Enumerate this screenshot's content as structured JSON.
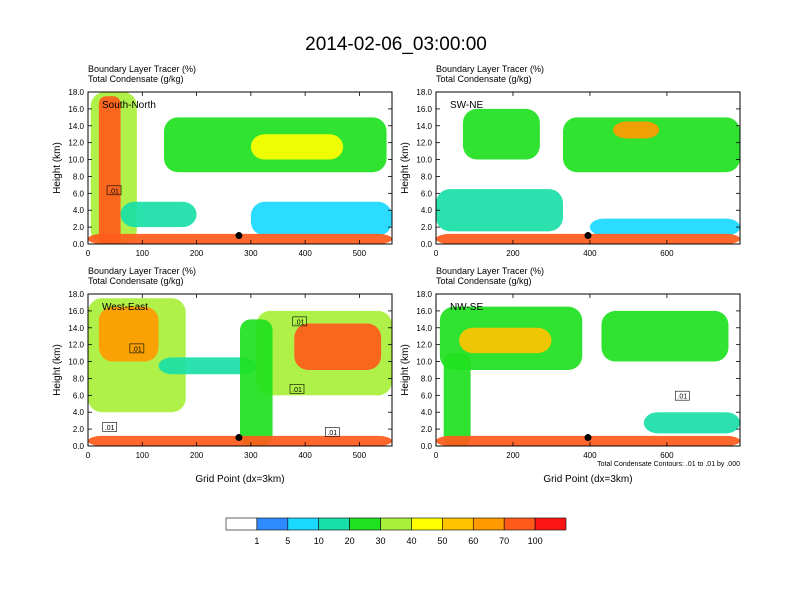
{
  "page_title": "2014-02-06_03:00:00",
  "chart_data": [
    {
      "type": "heatmap",
      "panel": "South-North",
      "title_lines": [
        "Boundary Layer Tracer   (%)",
        "Total Condensate   (g/kg)"
      ],
      "ylabel": "Height (km)",
      "xlabel": "",
      "xlim": [
        0,
        560
      ],
      "ylim": [
        0,
        18
      ],
      "xticks": [
        0,
        100,
        200,
        300,
        400,
        500
      ],
      "yticks": [
        0.0,
        2.0,
        4.0,
        6.0,
        8.0,
        10.0,
        12.0,
        14.0,
        16.0,
        18.0
      ],
      "marker": {
        "x": 278,
        "y": 1.0
      },
      "contour_labels": [
        {
          "text": ".01",
          "x": 48,
          "y": 6.3
        }
      ],
      "regions": [
        {
          "level": 30,
          "x0": 5,
          "x1": 90,
          "y0": 0,
          "y1": 18
        },
        {
          "level": 70,
          "x0": 20,
          "x1": 60,
          "y0": 0,
          "y1": 17.5
        },
        {
          "level": 20,
          "x0": 140,
          "x1": 550,
          "y0": 8.5,
          "y1": 15
        },
        {
          "level": 40,
          "x0": 300,
          "x1": 470,
          "y0": 10,
          "y1": 13
        },
        {
          "level": 10,
          "x0": 60,
          "x1": 200,
          "y0": 2,
          "y1": 5
        },
        {
          "level": 5,
          "x0": 300,
          "x1": 560,
          "y0": 1,
          "y1": 5
        },
        {
          "level": 70,
          "x0": 0,
          "x1": 560,
          "y0": 0,
          "y1": 1.2
        }
      ]
    },
    {
      "type": "heatmap",
      "panel": "SW-NE",
      "title_lines": [
        "Boundary Layer Tracer   (%)",
        "Total Condensate   (g/kg)"
      ],
      "ylabel": "Height (km)",
      "xlabel": "",
      "xlim": [
        0,
        790
      ],
      "ylim": [
        0,
        18
      ],
      "xticks": [
        0,
        200,
        400,
        600
      ],
      "yticks": [
        0.0,
        2.0,
        4.0,
        6.0,
        8.0,
        10.0,
        12.0,
        14.0,
        16.0,
        18.0
      ],
      "marker": {
        "x": 395,
        "y": 1.0
      },
      "contour_labels": [],
      "regions": [
        {
          "level": 20,
          "x0": 70,
          "x1": 270,
          "y0": 10,
          "y1": 16
        },
        {
          "level": 20,
          "x0": 330,
          "x1": 790,
          "y0": 8.5,
          "y1": 15
        },
        {
          "level": 60,
          "x0": 460,
          "x1": 580,
          "y0": 12.5,
          "y1": 14.5
        },
        {
          "level": 10,
          "x0": 0,
          "x1": 330,
          "y0": 1.5,
          "y1": 6.5
        },
        {
          "level": 5,
          "x0": 400,
          "x1": 790,
          "y0": 1,
          "y1": 3
        },
        {
          "level": 70,
          "x0": 0,
          "x1": 790,
          "y0": 0,
          "y1": 1.2
        }
      ]
    },
    {
      "type": "heatmap",
      "panel": "West-East",
      "title_lines": [
        "Boundary Layer Tracer   (%)",
        "Total Condensate   (g/kg)"
      ],
      "ylabel": "Height (km)",
      "xlabel": "Grid Point (dx=3km)",
      "xlim": [
        0,
        560
      ],
      "ylim": [
        0,
        18
      ],
      "xticks": [
        0,
        100,
        200,
        300,
        400,
        500
      ],
      "yticks": [
        0.0,
        2.0,
        4.0,
        6.0,
        8.0,
        10.0,
        12.0,
        14.0,
        16.0,
        18.0
      ],
      "marker": {
        "x": 278,
        "y": 1.0
      },
      "contour_labels": [
        {
          "text": ".01",
          "x": 90,
          "y": 11.5
        },
        {
          "text": ".01",
          "x": 40,
          "y": 2.2
        },
        {
          "text": ".01",
          "x": 390,
          "y": 14.7
        },
        {
          "text": ".01",
          "x": 385,
          "y": 6.7
        },
        {
          "text": ".01",
          "x": 450,
          "y": 1.6
        }
      ],
      "regions": [
        {
          "level": 30,
          "x0": 0,
          "x1": 180,
          "y0": 4,
          "y1": 17.5
        },
        {
          "level": 60,
          "x0": 20,
          "x1": 130,
          "y0": 10,
          "y1": 16.5
        },
        {
          "level": 10,
          "x0": 130,
          "x1": 310,
          "y0": 8.5,
          "y1": 10.5
        },
        {
          "level": 30,
          "x0": 310,
          "x1": 560,
          "y0": 6,
          "y1": 16
        },
        {
          "level": 70,
          "x0": 380,
          "x1": 540,
          "y0": 9,
          "y1": 14.5
        },
        {
          "level": 20,
          "x0": 280,
          "x1": 340,
          "y0": 0,
          "y1": 15
        },
        {
          "level": 70,
          "x0": 0,
          "x1": 560,
          "y0": 0,
          "y1": 1.2
        }
      ]
    },
    {
      "type": "heatmap",
      "panel": "NW-SE",
      "title_lines": [
        "Boundary Layer Tracer   (%)",
        "Total Condensate   (g/kg)"
      ],
      "ylabel": "Height (km)",
      "xlabel": "Grid Point (dx=3km)",
      "xlim": [
        0,
        790
      ],
      "ylim": [
        0,
        18
      ],
      "xticks": [
        0,
        200,
        400,
        600
      ],
      "yticks": [
        0.0,
        2.0,
        4.0,
        6.0,
        8.0,
        10.0,
        12.0,
        14.0,
        16.0,
        18.0
      ],
      "marker": {
        "x": 395,
        "y": 1.0
      },
      "contour_labels": [
        {
          "text": ".01",
          "x": 640,
          "y": 5.9
        }
      ],
      "annotation": "Total Condensate Contours: .01 to .01 by .000",
      "regions": [
        {
          "level": 20,
          "x0": 10,
          "x1": 380,
          "y0": 9,
          "y1": 16.5
        },
        {
          "level": 50,
          "x0": 60,
          "x1": 300,
          "y0": 11,
          "y1": 14
        },
        {
          "level": 20,
          "x0": 430,
          "x1": 760,
          "y0": 10,
          "y1": 16
        },
        {
          "level": 20,
          "x0": 20,
          "x1": 90,
          "y0": 0,
          "y1": 11
        },
        {
          "level": 10,
          "x0": 540,
          "x1": 790,
          "y0": 1.5,
          "y1": 4
        },
        {
          "level": 70,
          "x0": 0,
          "x1": 790,
          "y0": 0,
          "y1": 1.2
        }
      ]
    }
  ],
  "colorbar": {
    "labels": [
      "1",
      "5",
      "10",
      "20",
      "30",
      "40",
      "50",
      "60",
      "70",
      "100"
    ],
    "colors": [
      "#ffffff",
      "#2e8bff",
      "#19d9ff",
      "#19e0a8",
      "#1fe11f",
      "#a8f03a",
      "#ffff00",
      "#ffc300",
      "#ff9a00",
      "#ff5a1a",
      "#ff1414"
    ]
  }
}
